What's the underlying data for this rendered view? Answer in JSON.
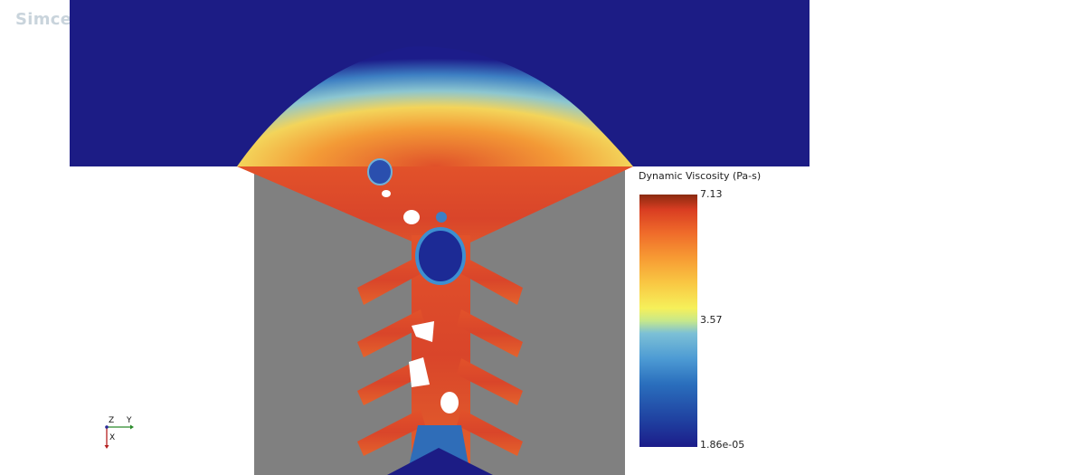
{
  "app": {
    "brand_text": "Simce"
  },
  "scene": {
    "background_color": "#ffffff",
    "solid_wall_color": "#808080",
    "low_value_color": "#1a1a85"
  },
  "legend": {
    "title": "Dynamic Viscosity (Pa-s)",
    "max_label": "7.13",
    "mid_label": "3.57",
    "min_label": "1.86e-05",
    "colormap": [
      "#1c1c8a",
      "#1f3f9f",
      "#2a6fbd",
      "#4d9bd4",
      "#7cc0d6",
      "#c7e88a",
      "#f6f05a",
      "#f9c743",
      "#f79a33",
      "#ef6a2a",
      "#d93d22",
      "#8a2a10"
    ]
  },
  "axes": {
    "z_label": "Z",
    "y_label": "Y",
    "x_label": "X"
  }
}
